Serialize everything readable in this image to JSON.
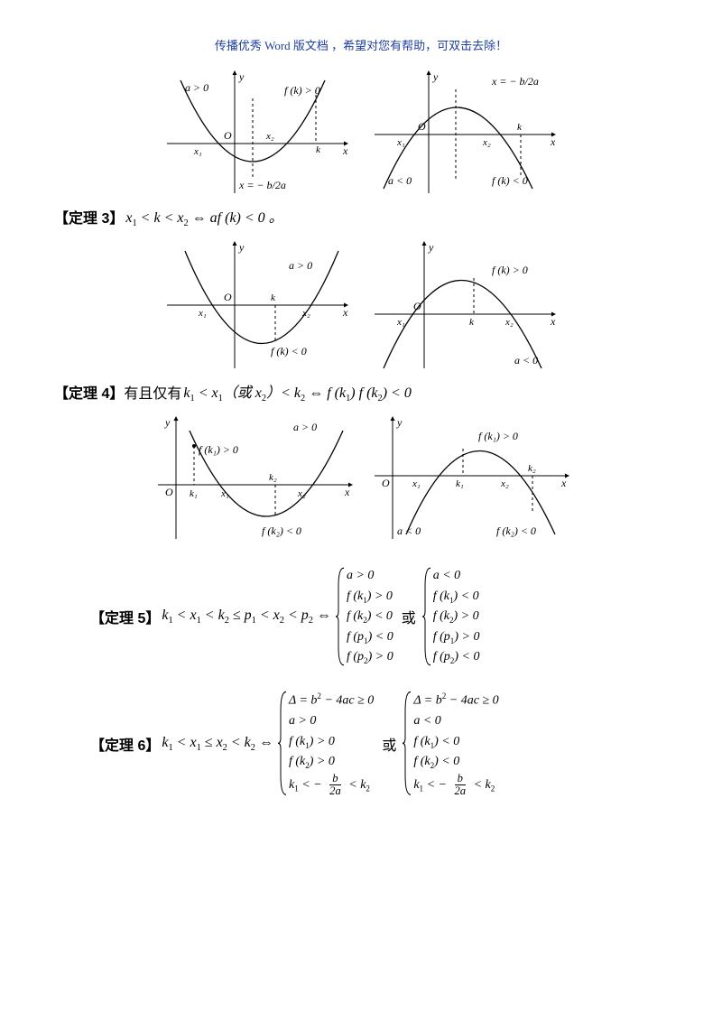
{
  "header": "传播优秀 Word 版文档 ，希望对您有帮助，可双击去除！",
  "fig1": {
    "left": {
      "a_label": "a > 0",
      "fk_label": "f (k) > 0",
      "axis_label": "x = − b / 2a",
      "origin": "O",
      "x1": "x₁",
      "x2": "x₂",
      "k": "k"
    },
    "right": {
      "axis_label": "x = − b / 2a",
      "a_label": "a < 0",
      "fk_label": "f (k) < 0",
      "origin": "O",
      "x1": "x₁",
      "x2": "x₂",
      "k": "k"
    }
  },
  "theorem3": {
    "label": "【定理 3】",
    "math_html": "x<span class='sub'>1</span> &lt; k &lt; x<span class='sub'>2</span> ⇔ af (k) &lt; 0 。"
  },
  "fig3": {
    "left": {
      "a_label": "a > 0",
      "fk_label": "f (k) < 0",
      "origin": "O",
      "x1": "x₁",
      "x2": "x₂",
      "k": "k"
    },
    "right": {
      "a_label": "a < 0",
      "fk_label": "f (k) > 0",
      "origin": "O",
      "x1": "x₁",
      "x2": "x₂",
      "k": "k"
    }
  },
  "theorem4": {
    "label": "【定理 4】",
    "text_prefix": "有且仅有",
    "math_html": "k<span class='sub'>1</span> &lt; x<span class='sub'>1</span>（或 x<span class='sub'>2</span>）&lt; k<span class='sub'>2</span> ⇔ f (k<span class='sub'>1</span>) f (k<span class='sub'>2</span>) &lt; 0"
  },
  "fig4": {
    "left": {
      "a_label": "a > 0",
      "fk1": "f (k₁) > 0",
      "fk2": "f (k₂) < 0",
      "origin": "O",
      "k1": "k₁",
      "k2": "k₂",
      "x1": "x₁",
      "x2": "x₂"
    },
    "right": {
      "a_label": "a < 0",
      "fk1": "f (k₁) > 0",
      "fk2": "f (k₂) < 0",
      "origin": "O",
      "k1": "k₁",
      "k2": "k₂",
      "x1": "x₁",
      "x2": "x₂"
    }
  },
  "theorem5": {
    "label": "【定理 5】",
    "lhs_html": "k<span class='sub'>1</span> &lt; x<span class='sub'>1</span> &lt; k<span class='sub'>2</span> ≤ p<span class='sub'>1</span> &lt; x<span class='sub'>2</span> &lt; p<span class='sub'>2</span> ⇔",
    "sys1": [
      "a > 0",
      "f (k<span class='sub'>1</span>) > 0",
      "f (k<span class='sub'>2</span>) < 0",
      "f (p<span class='sub'>1</span>) < 0",
      "f (p<span class='sub'>2</span>) > 0"
    ],
    "or": "或",
    "sys2": [
      "a < 0",
      "f (k<span class='sub'>1</span>) < 0",
      "f (k<span class='sub'>2</span>) > 0",
      "f (p<span class='sub'>1</span>) > 0",
      "f (p<span class='sub'>2</span>) < 0"
    ]
  },
  "theorem6": {
    "label": "【定理 6】",
    "lhs_html": "k<span class='sub'>1</span> &lt; x<span class='sub'>1</span> ≤ x<span class='sub'>2</span> &lt; k<span class='sub'>2</span> ⇔",
    "sys1": [
      "Δ = b<span class='sup'>2</span> − 4ac ≥ 0",
      "a > 0",
      "f (k<span class='sub'>1</span>) > 0",
      "f (k<span class='sub'>2</span>) > 0",
      "k<span class='sub'>1</span> &lt; − <span class='frac'><span class='num'>b</span><span class='den'>2a</span></span> &lt; k<span class='sub'>2</span>"
    ],
    "or": "或",
    "sys2": [
      "Δ = b<span class='sup'>2</span> − 4ac ≥ 0",
      "a < 0",
      "f (k<span class='sub'>1</span>) < 0",
      "f (k<span class='sub'>2</span>) < 0",
      "k<span class='sub'>1</span> &lt; − <span class='frac'><span class='num'>b</span><span class='den'>2a</span></span> &lt; k<span class='sub'>2</span>"
    ]
  },
  "colors": {
    "stroke": "#000000",
    "bg": "#ffffff",
    "header": "#2040a0"
  }
}
